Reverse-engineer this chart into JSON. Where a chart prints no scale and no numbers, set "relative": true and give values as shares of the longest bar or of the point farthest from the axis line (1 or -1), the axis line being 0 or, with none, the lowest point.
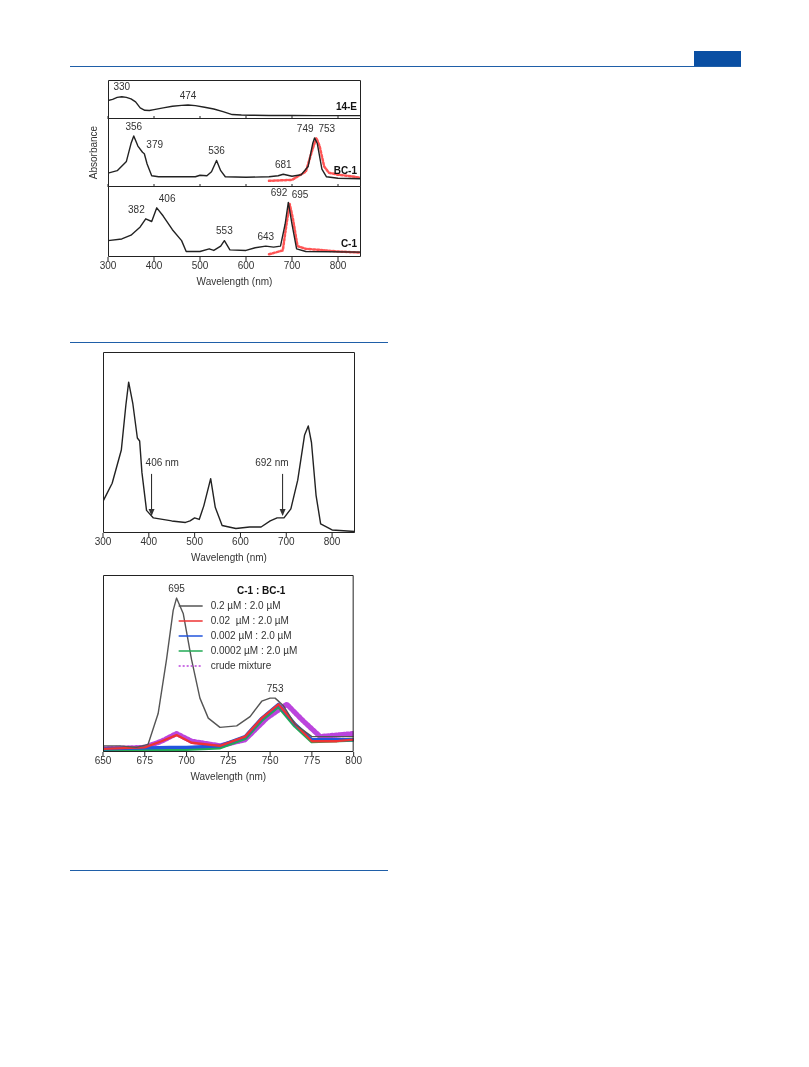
{
  "chart_data": [
    {
      "type": "line",
      "xlim": [
        300,
        850
      ],
      "xticks": [
        300,
        400,
        500,
        600,
        700,
        800
      ],
      "relative": true,
      "tick_labels": false,
      "legend": false,
      "grid": false,
      "series": [
        {
          "name": "14-E",
          "color": "#222222",
          "x": [
            300,
            310,
            320,
            330,
            340,
            350,
            360,
            370,
            380,
            390,
            400,
            420,
            440,
            460,
            474,
            490,
            510,
            530,
            550,
            570,
            590,
            610,
            650,
            700,
            750,
            800,
            850
          ],
          "values": [
            0.83,
            0.88,
            0.97,
            1,
            0.97,
            0.9,
            0.77,
            0.5,
            0.39,
            0.38,
            0.42,
            0.5,
            0.57,
            0.61,
            0.63,
            0.6,
            0.53,
            0.45,
            0.33,
            0.2,
            0.18,
            0.17,
            0.16,
            0.16,
            0.15,
            0.15,
            0.15
          ]
        }
      ],
      "annotations": [
        {
          "text": "330",
          "x": 330,
          "y": 1
        },
        {
          "text": "474",
          "x": 474,
          "y": 0.63
        }
      ]
    },
    {
      "type": "line",
      "xlim": [
        300,
        850
      ],
      "xticks": [
        300,
        400,
        500,
        600,
        700,
        800
      ],
      "relative": true,
      "tick_labels": false,
      "legend": false,
      "grid": false,
      "ylabel": "Absorbance",
      "series": [
        {
          "name": "BC-1",
          "color": "#222222",
          "x": [
            300,
            320,
            340,
            350,
            356,
            365,
            375,
            379,
            385,
            395,
            410,
            450,
            490,
            500,
            515,
            525,
            536,
            545,
            555,
            600,
            650,
            670,
            681,
            700,
            720,
            735,
            745,
            749,
            755,
            765,
            775,
            800,
            850
          ],
          "values": [
            0.27,
            0.32,
            0.5,
            0.85,
            1,
            0.8,
            0.68,
            0.65,
            0.45,
            0.22,
            0.2,
            0.2,
            0.2,
            0.23,
            0.22,
            0.3,
            0.52,
            0.32,
            0.2,
            0.19,
            0.2,
            0.22,
            0.25,
            0.21,
            0.24,
            0.4,
            0.85,
            0.96,
            0.85,
            0.35,
            0.2,
            0.17,
            0.16
          ]
        },
        {
          "color": "#ff5555",
          "line_style": "dotted",
          "x": [
            650,
            700,
            730,
            745,
            753,
            760,
            770,
            780,
            800,
            820,
            850
          ],
          "values": [
            0.12,
            0.14,
            0.3,
            0.75,
            0.96,
            0.8,
            0.4,
            0.28,
            0.24,
            0.22,
            0.18
          ]
        }
      ],
      "annotations": [
        {
          "text": "356",
          "x": 356,
          "y": 1
        },
        {
          "text": "379",
          "x": 379,
          "y": 0.65
        },
        {
          "text": "536",
          "x": 536,
          "y": 0.52
        },
        {
          "text": "681",
          "x": 681,
          "y": 0.25
        },
        {
          "text": "749",
          "x": 749,
          "y": 0.96
        },
        {
          "text": "753",
          "x": 753,
          "y": 0.96
        }
      ]
    },
    {
      "type": "line",
      "xlim": [
        300,
        850
      ],
      "xticks": [
        300,
        400,
        500,
        600,
        700,
        800
      ],
      "relative": true,
      "tick_labels": "x",
      "legend": false,
      "grid": false,
      "xlabel": "Wavelength (nm)",
      "series": [
        {
          "name": "C-1",
          "color": "#222222",
          "x": [
            300,
            330,
            350,
            370,
            382,
            395,
            406,
            420,
            440,
            460,
            470,
            500,
            520,
            530,
            545,
            553,
            565,
            600,
            620,
            643,
            660,
            675,
            685,
            692,
            700,
            710,
            730,
            850
          ],
          "values": [
            0.3,
            0.33,
            0.4,
            0.55,
            0.7,
            0.65,
            0.9,
            0.75,
            0.5,
            0.3,
            0.1,
            0.1,
            0.15,
            0.12,
            0.2,
            0.3,
            0.13,
            0.12,
            0.17,
            0.2,
            0.18,
            0.2,
            0.6,
            1,
            0.6,
            0.15,
            0.1,
            0.09
          ]
        },
        {
          "color": "#ff5555",
          "line_style": "dotted",
          "x": [
            650,
            680,
            688,
            695,
            702,
            712,
            730,
            760,
            800,
            850
          ],
          "values": [
            0.05,
            0.12,
            0.6,
            0.97,
            0.7,
            0.2,
            0.15,
            0.13,
            0.1,
            0.08
          ]
        }
      ],
      "annotations": [
        {
          "text": "382",
          "x": 382,
          "y": 0.7
        },
        {
          "text": "406",
          "x": 406,
          "y": 0.9
        },
        {
          "text": "553",
          "x": 553,
          "y": 0.3
        },
        {
          "text": "643",
          "x": 643,
          "y": 0.2
        },
        {
          "text": "692",
          "x": 692,
          "y": 1
        },
        {
          "text": "695",
          "x": 695,
          "y": 0.97
        }
      ]
    },
    {
      "type": "line",
      "xlim": [
        300,
        850
      ],
      "xticks": [
        300,
        400,
        500,
        600,
        700,
        800
      ],
      "relative": true,
      "legend": false,
      "grid": false,
      "xlabel": "Wavelength (nm)",
      "series": [
        {
          "color": "#222222",
          "x": [
            300,
            320,
            340,
            350,
            356,
            365,
            375,
            380,
            385,
            395,
            410,
            450,
            480,
            490,
            500,
            510,
            520,
            535,
            545,
            560,
            590,
            620,
            645,
            665,
            680,
            695,
            710,
            725,
            740,
            748,
            755,
            765,
            775,
            800,
            850
          ],
          "values": [
            0.21,
            0.33,
            0.55,
            0.85,
            1,
            0.86,
            0.63,
            0.61,
            0.4,
            0.15,
            0.1,
            0.08,
            0.07,
            0.08,
            0.1,
            0.09,
            0.18,
            0.36,
            0.17,
            0.05,
            0.03,
            0.04,
            0.04,
            0.08,
            0.1,
            0.1,
            0.16,
            0.35,
            0.65,
            0.71,
            0.6,
            0.25,
            0.06,
            0.02,
            0.01
          ]
        }
      ],
      "annotations": [
        {
          "text": "406 nm",
          "x": 406,
          "y": 0.1
        },
        {
          "text": "692 nm",
          "x": 692,
          "y": 0.1
        }
      ]
    },
    {
      "type": "line",
      "xlim": [
        650,
        800
      ],
      "xticks": [
        650,
        675,
        700,
        725,
        750,
        775,
        800
      ],
      "relative": true,
      "legend": "top right",
      "legend_title": "C-1 : BC-1",
      "grid": false,
      "xlabel": "Wavelength (nm)",
      "series": [
        {
          "name": "0.2 µM : 2.0 µM",
          "color": "#555555",
          "x": [
            650,
            660,
            670,
            677,
            683,
            688,
            692,
            694,
            698,
            703,
            708,
            713,
            720,
            730,
            738,
            745,
            750,
            753,
            758,
            765,
            775,
            790,
            800
          ],
          "values": [
            0.04,
            0.04,
            0.03,
            0.05,
            0.25,
            0.6,
            0.92,
            1,
            0.9,
            0.6,
            0.35,
            0.22,
            0.16,
            0.17,
            0.23,
            0.33,
            0.35,
            0.35,
            0.3,
            0.18,
            0.1,
            0.1,
            0.1
          ]
        },
        {
          "name": "0.02  µM : 2.0 µM",
          "color": "#ee3333",
          "x": [
            650,
            675,
            685,
            694,
            703,
            720,
            735,
            745,
            755,
            765,
            775,
            790,
            800
          ],
          "values": [
            0.02,
            0.03,
            0.07,
            0.11,
            0.06,
            0.04,
            0.1,
            0.22,
            0.31,
            0.18,
            0.07,
            0.07,
            0.08
          ]
        },
        {
          "name": "0.002 µM : 2.0 µM",
          "color": "#2255dd",
          "x": [
            650,
            690,
            700,
            720,
            735,
            745,
            755,
            765,
            775,
            800
          ],
          "values": [
            0.02,
            0.03,
            0.03,
            0.04,
            0.1,
            0.22,
            0.31,
            0.18,
            0.08,
            0.08
          ]
        },
        {
          "name": "0.0002 µM : 2.0 µM",
          "color": "#22aa55",
          "x": [
            650,
            700,
            720,
            735,
            745,
            755,
            765,
            775,
            800
          ],
          "values": [
            0.01,
            0.02,
            0.03,
            0.09,
            0.21,
            0.3,
            0.17,
            0.07,
            0.08
          ]
        },
        {
          "name": "crude mixture",
          "color": "#bb44dd",
          "line_style": "dotted",
          "x": [
            650,
            675,
            685,
            694,
            703,
            720,
            735,
            748,
            760,
            770,
            780,
            800
          ],
          "values": [
            0.02,
            0.03,
            0.07,
            0.12,
            0.07,
            0.04,
            0.08,
            0.22,
            0.31,
            0.2,
            0.1,
            0.12
          ]
        }
      ],
      "annotations": [
        {
          "text": "695",
          "x": 694,
          "y": 1
        },
        {
          "text": "753",
          "x": 753,
          "y": 0.35
        }
      ]
    }
  ]
}
